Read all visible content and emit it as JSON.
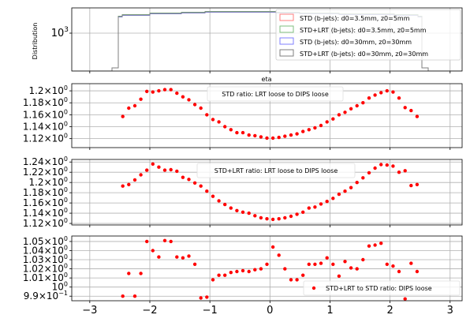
{
  "chart_data": [
    {
      "type": "line",
      "ylabel": "Distribution",
      "xlabel": "eta",
      "xlim": [
        -3.3,
        3.2
      ],
      "scale_y": "log",
      "ytick_labels": [
        "10^3"
      ],
      "legend_position": "top-right",
      "series": [
        {
          "name": "STD (b-jets): d0=3.5mm, z0=5mm",
          "color": "#ff7f7f"
        },
        {
          "name": "STD+LRT (b-jets): d0=3.5mm, z0=5mm",
          "color": "#7fbf7f"
        },
        {
          "name": "STD (b-jets): d0=30mm, z0=30mm",
          "color": "#7f7fff"
        },
        {
          "name": "STD+LRT (b-jets): d0=30mm, z0=30mm",
          "color": "#7f7f7f"
        }
      ],
      "grid": true
    },
    {
      "type": "scatter",
      "ylim": [
        1.105,
        1.212
      ],
      "yticks": [
        1.12,
        1.14,
        1.16,
        1.18,
        1.2
      ],
      "ytick_labels": [
        "1.12",
        "1.14",
        "1.16",
        "1.18",
        "1.2"
      ],
      "label": "STD ratio: LRT loose to DIPS loose",
      "color": "#ff0000",
      "grid": true,
      "x": [
        -2.45,
        -2.35,
        -2.25,
        -2.15,
        -2.05,
        -1.95,
        -1.85,
        -1.75,
        -1.65,
        -1.55,
        -1.45,
        -1.35,
        -1.25,
        -1.15,
        -1.05,
        -0.95,
        -0.85,
        -0.75,
        -0.65,
        -0.55,
        -0.45,
        -0.35,
        -0.25,
        -0.15,
        -0.05,
        0.05,
        0.15,
        0.25,
        0.35,
        0.45,
        0.55,
        0.65,
        0.75,
        0.85,
        0.95,
        1.05,
        1.15,
        1.25,
        1.35,
        1.45,
        1.55,
        1.65,
        1.75,
        1.85,
        1.95,
        2.05,
        2.15,
        2.25,
        2.35,
        2.45
      ],
      "y": [
        1.157,
        1.171,
        1.175,
        1.186,
        1.199,
        1.198,
        1.2,
        1.202,
        1.202,
        1.196,
        1.19,
        1.185,
        1.177,
        1.171,
        1.16,
        1.152,
        1.148,
        1.14,
        1.135,
        1.13,
        1.13,
        1.126,
        1.125,
        1.123,
        1.121,
        1.121,
        1.122,
        1.124,
        1.126,
        1.128,
        1.132,
        1.135,
        1.138,
        1.142,
        1.148,
        1.153,
        1.16,
        1.164,
        1.17,
        1.175,
        1.18,
        1.188,
        1.193,
        1.197,
        1.2,
        1.198,
        1.188,
        1.172,
        1.167,
        1.157
      ]
    },
    {
      "type": "scatter",
      "ylim": [
        1.117,
        1.245
      ],
      "yticks": [
        1.12,
        1.14,
        1.16,
        1.18,
        1.2,
        1.22,
        1.24
      ],
      "ytick_labels": [
        "1.12",
        "1.14",
        "1.16",
        "1.18",
        "1.2",
        "1.22",
        "1.24"
      ],
      "label": "STD+LRT ratio: LRT loose to DIPS loose",
      "color": "#ff0000",
      "grid": true,
      "x": [
        -2.45,
        -2.35,
        -2.25,
        -2.15,
        -2.05,
        -1.95,
        -1.85,
        -1.75,
        -1.65,
        -1.55,
        -1.45,
        -1.35,
        -1.25,
        -1.15,
        -1.05,
        -0.95,
        -0.85,
        -0.75,
        -0.65,
        -0.55,
        -0.45,
        -0.35,
        -0.25,
        -0.15,
        -0.05,
        0.05,
        0.15,
        0.25,
        0.35,
        0.45,
        0.55,
        0.65,
        0.75,
        0.85,
        0.95,
        1.05,
        1.15,
        1.25,
        1.35,
        1.45,
        1.55,
        1.65,
        1.75,
        1.85,
        1.95,
        2.05,
        2.15,
        2.25,
        2.35,
        2.45
      ],
      "y": [
        1.193,
        1.196,
        1.205,
        1.215,
        1.224,
        1.236,
        1.23,
        1.224,
        1.225,
        1.222,
        1.21,
        1.206,
        1.199,
        1.193,
        1.183,
        1.173,
        1.164,
        1.157,
        1.15,
        1.145,
        1.142,
        1.14,
        1.135,
        1.131,
        1.129,
        1.128,
        1.129,
        1.131,
        1.134,
        1.138,
        1.142,
        1.15,
        1.152,
        1.158,
        1.163,
        1.169,
        1.177,
        1.183,
        1.19,
        1.2,
        1.209,
        1.219,
        1.228,
        1.235,
        1.234,
        1.232,
        1.22,
        1.223,
        1.194,
        1.196
      ]
    },
    {
      "type": "scatter",
      "ylim": [
        0.985,
        1.056
      ],
      "yticks": [
        0.99,
        1.0,
        1.01,
        1.02,
        1.03,
        1.04,
        1.05
      ],
      "ytick_labels": [
        "9.9×10⁻¹",
        "10⁰",
        "1.01",
        "1.02",
        "1.03",
        "1.04",
        "1.05"
      ],
      "label": "STD+LRT to STD ratio: DIPS loose",
      "legend_position": "bottom-right",
      "color": "#ff0000",
      "grid": true,
      "xticks": [
        -3,
        -2,
        -1,
        0,
        1,
        2,
        3
      ],
      "x": [
        -2.45,
        -2.35,
        -2.25,
        -2.15,
        -2.05,
        -1.95,
        -1.85,
        -1.75,
        -1.65,
        -1.55,
        -1.45,
        -1.35,
        -1.25,
        -1.15,
        -1.05,
        -0.95,
        -0.85,
        -0.75,
        -0.65,
        -0.55,
        -0.45,
        -0.35,
        -0.25,
        -0.15,
        -0.05,
        0.05,
        0.15,
        0.25,
        0.35,
        0.45,
        0.55,
        0.65,
        0.75,
        0.85,
        0.95,
        1.05,
        1.15,
        1.25,
        1.35,
        1.45,
        1.55,
        1.65,
        1.75,
        1.85,
        1.95,
        2.05,
        2.15,
        2.25,
        2.35,
        2.45
      ],
      "y": [
        0.99,
        1.015,
        0.99,
        1.015,
        1.05,
        1.04,
        1.033,
        1.051,
        1.05,
        1.033,
        1.032,
        1.034,
        1.025,
        0.988,
        0.989,
        1.008,
        1.013,
        1.013,
        1.016,
        1.017,
        1.018,
        1.017,
        1.019,
        1.02,
        1.025,
        1.044,
        1.035,
        1.02,
        1.008,
        1.008,
        1.013,
        1.025,
        1.025,
        1.026,
        1.032,
        1.025,
        1.012,
        1.028,
        1.021,
        1.02,
        1.03,
        1.045,
        1.046,
        1.048,
        1.025,
        1.023,
        1.017,
        0.987,
        1.026,
        1.017
      ]
    }
  ]
}
